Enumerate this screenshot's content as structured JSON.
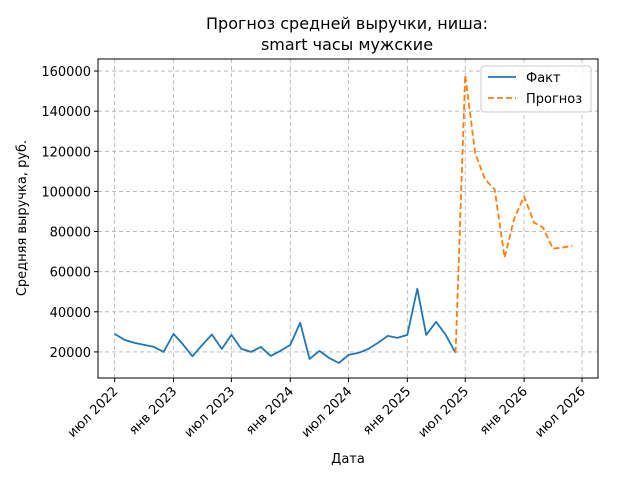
{
  "chart_data": {
    "type": "line",
    "title": "Прогноз средней выручки, ниша:",
    "subtitle": "smart часы мужские",
    "xlabel": "Дата",
    "ylabel": "Средняя выручка, руб.",
    "xlim": [
      "2022-05-10",
      "2026-08-20"
    ],
    "ylim": [
      7000,
      166000
    ],
    "yticks": [
      20000,
      40000,
      60000,
      80000,
      100000,
      120000,
      140000,
      160000
    ],
    "xticks": [
      {
        "date": "2022-07-01",
        "label": "июл 2022"
      },
      {
        "date": "2023-01-01",
        "label": "янв 2023"
      },
      {
        "date": "2023-07-01",
        "label": "июл 2023"
      },
      {
        "date": "2024-01-01",
        "label": "янв 2024"
      },
      {
        "date": "2024-07-01",
        "label": "июл 2024"
      },
      {
        "date": "2025-01-01",
        "label": "янв 2025"
      },
      {
        "date": "2025-07-01",
        "label": "июл 2025"
      },
      {
        "date": "2026-01-01",
        "label": "янв 2026"
      },
      {
        "date": "2026-07-01",
        "label": "июл 2026"
      }
    ],
    "grid": true,
    "legend_position": "top-right",
    "series": [
      {
        "name": "Факт",
        "color": "#1f77b4",
        "style": "solid",
        "points": [
          [
            "2022-07-01",
            29000
          ],
          [
            "2022-08-01",
            26000
          ],
          [
            "2022-09-01",
            24500
          ],
          [
            "2022-10-01",
            23500
          ],
          [
            "2022-11-01",
            22500
          ],
          [
            "2022-12-01",
            20000
          ],
          [
            "2023-01-01",
            29000
          ],
          [
            "2023-02-01",
            23500
          ],
          [
            "2023-03-01",
            17800
          ],
          [
            "2023-04-01",
            23500
          ],
          [
            "2023-05-01",
            28700
          ],
          [
            "2023-06-01",
            21500
          ],
          [
            "2023-07-01",
            28500
          ],
          [
            "2023-08-01",
            21500
          ],
          [
            "2023-09-01",
            20000
          ],
          [
            "2023-10-01",
            22500
          ],
          [
            "2023-11-01",
            18000
          ],
          [
            "2023-12-01",
            20500
          ],
          [
            "2024-01-01",
            23500
          ],
          [
            "2024-02-01",
            34500
          ],
          [
            "2024-03-01",
            16500
          ],
          [
            "2024-04-01",
            20500
          ],
          [
            "2024-05-01",
            17000
          ],
          [
            "2024-06-01",
            14500
          ],
          [
            "2024-07-01",
            18500
          ],
          [
            "2024-08-01",
            19500
          ],
          [
            "2024-09-01",
            21500
          ],
          [
            "2024-10-01",
            24500
          ],
          [
            "2024-11-01",
            28000
          ],
          [
            "2024-12-01",
            27000
          ],
          [
            "2025-01-01",
            28500
          ],
          [
            "2025-02-01",
            51500
          ],
          [
            "2025-03-01",
            28500
          ],
          [
            "2025-04-01",
            35000
          ],
          [
            "2025-05-01",
            28500
          ],
          [
            "2025-06-01",
            19500
          ]
        ]
      },
      {
        "name": "Прогноз",
        "color": "#ff7f0e",
        "style": "dashed",
        "points": [
          [
            "2025-06-01",
            19500
          ],
          [
            "2025-07-01",
            158000
          ],
          [
            "2025-08-01",
            119000
          ],
          [
            "2025-09-01",
            106000
          ],
          [
            "2025-10-01",
            101000
          ],
          [
            "2025-11-01",
            67000
          ],
          [
            "2025-12-01",
            86500
          ],
          [
            "2026-01-01",
            97500
          ],
          [
            "2026-02-01",
            84500
          ],
          [
            "2026-03-01",
            82000
          ],
          [
            "2026-04-01",
            71500
          ],
          [
            "2026-05-01",
            72000
          ],
          [
            "2026-06-01",
            73000
          ]
        ]
      }
    ]
  }
}
